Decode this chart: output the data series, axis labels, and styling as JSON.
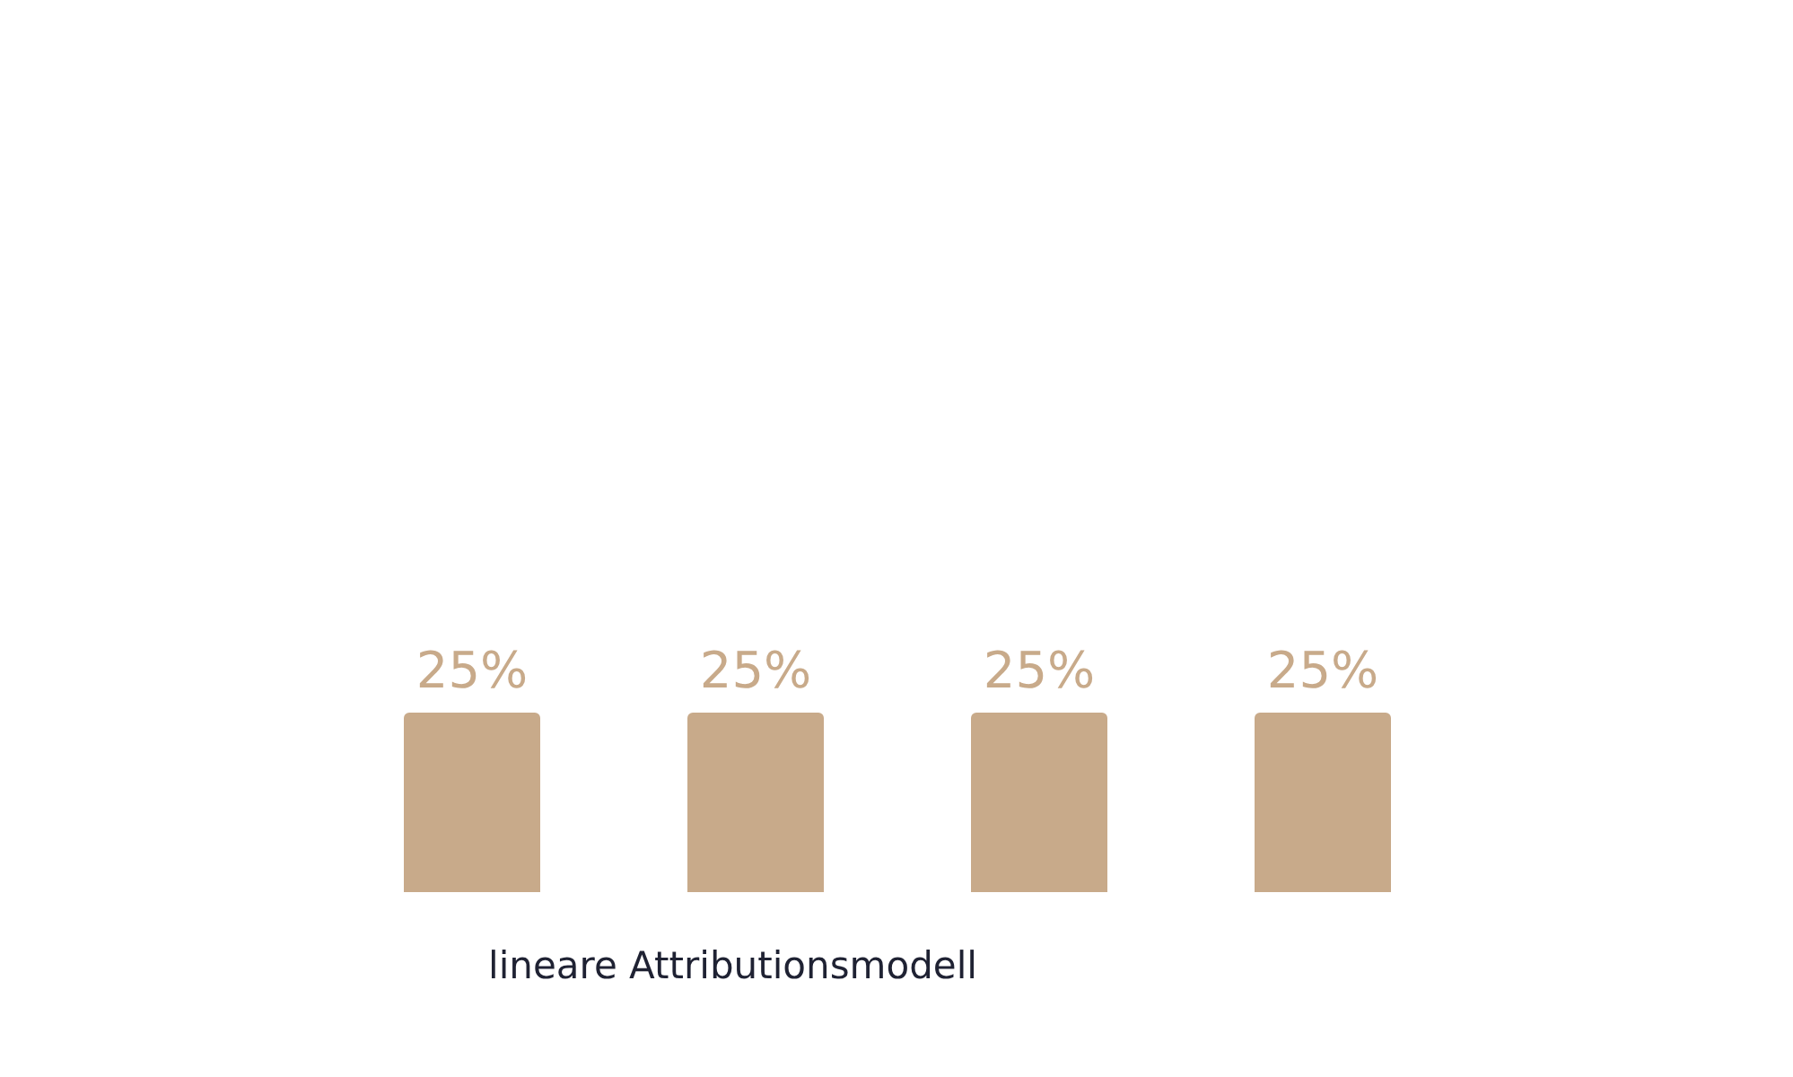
{
  "chart_data": {
    "type": "bar",
    "xlabel": "lineare Attributionsmodell",
    "categories": [
      null,
      null,
      null,
      null
    ],
    "values": [
      25,
      25,
      25,
      25
    ],
    "value_labels": [
      "25%",
      "25%",
      "25%",
      "25%"
    ],
    "color": "#c8aa8a"
  }
}
